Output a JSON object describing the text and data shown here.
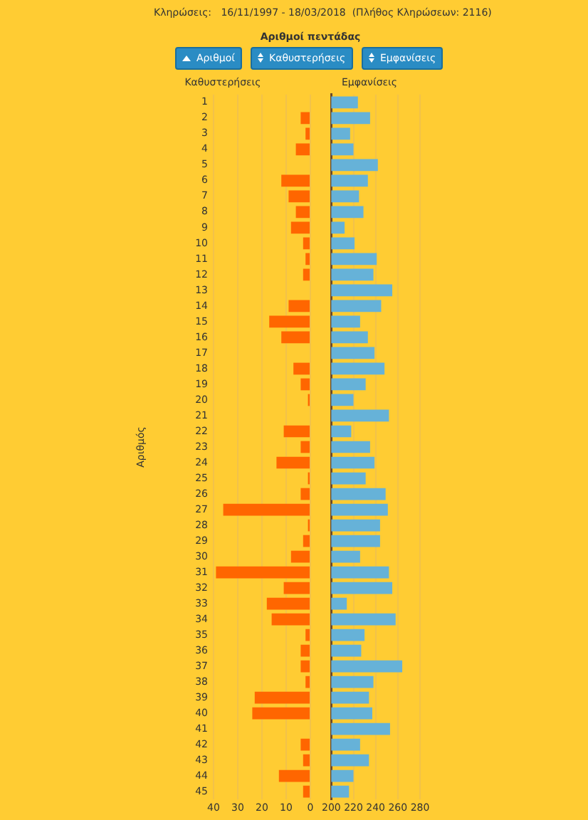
{
  "chart_data": [
    {
      "type": "bar",
      "orientation": "horizontal",
      "title": "Καθυστερήσεις",
      "ylabel": "Αριθμός",
      "color": "#ff6600",
      "grid": "x",
      "annotations": [
        "Κληρώσεις:   16/11/1997 - 18/03/2018  (Πλήθος Κληρώσεων: 2116)",
        "Αριθμοί πεντάδας",
        "Αριθμοί",
        "Καθυστερήσεις",
        "Εμφανίσεις"
      ],
      "categories": [
        "1",
        "2",
        "3",
        "4",
        "5",
        "6",
        "7",
        "8",
        "9",
        "10",
        "11",
        "12",
        "13",
        "14",
        "15",
        "16",
        "17",
        "18",
        "19",
        "20",
        "21",
        "22",
        "23",
        "24",
        "25",
        "26",
        "27",
        "28",
        "29",
        "30",
        "31",
        "32",
        "33",
        "34",
        "35",
        "36",
        "37",
        "38",
        "39",
        "40",
        "41",
        "42",
        "43",
        "44",
        "45"
      ],
      "values": [
        0,
        4,
        2,
        6,
        0,
        12,
        9,
        6,
        8,
        3,
        2,
        3,
        0,
        9,
        17,
        12,
        0,
        7,
        4,
        1,
        0,
        11,
        4,
        14,
        1,
        4,
        36,
        1,
        3,
        8,
        39,
        11,
        18,
        16,
        2,
        4,
        4,
        2,
        23,
        24,
        0,
        4,
        3,
        13,
        3
      ],
      "xlim": [
        40,
        0
      ],
      "xticks": [
        40,
        30,
        20,
        10,
        0
      ]
    },
    {
      "type": "bar",
      "orientation": "horizontal",
      "title": "Εμφανίσεις",
      "color": "#66b2d8",
      "grid": "x",
      "tick_labels": "x",
      "categories": [
        "1",
        "2",
        "3",
        "4",
        "5",
        "6",
        "7",
        "8",
        "9",
        "10",
        "11",
        "12",
        "13",
        "14",
        "15",
        "16",
        "17",
        "18",
        "19",
        "20",
        "21",
        "22",
        "23",
        "24",
        "25",
        "26",
        "27",
        "28",
        "29",
        "30",
        "31",
        "32",
        "33",
        "34",
        "35",
        "36",
        "37",
        "38",
        "39",
        "40",
        "41",
        "42",
        "43",
        "44",
        "45"
      ],
      "values": [
        224,
        235,
        217,
        220,
        242,
        233,
        225,
        229,
        212,
        221,
        241,
        238,
        255,
        245,
        226,
        233,
        239,
        248,
        231,
        220,
        252,
        218,
        235,
        239,
        231,
        249,
        251,
        244,
        244,
        226,
        252,
        255,
        214,
        258,
        230,
        227,
        264,
        238,
        234,
        237,
        253,
        226,
        234,
        220,
        216
      ],
      "xlim": [
        200,
        280
      ],
      "xticks": [
        200,
        220,
        240,
        260,
        280
      ]
    }
  ]
}
